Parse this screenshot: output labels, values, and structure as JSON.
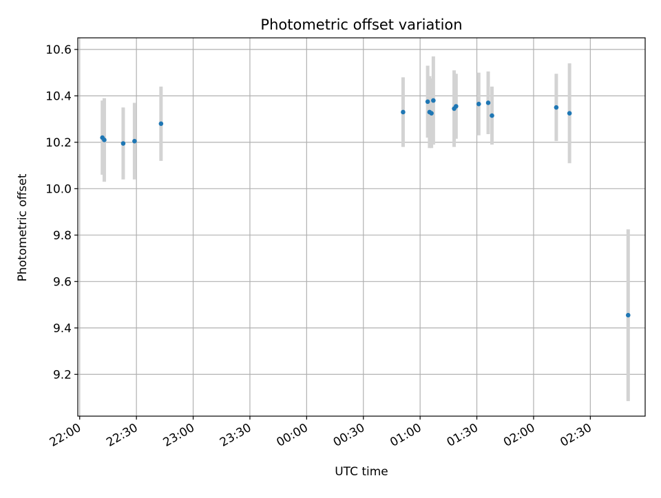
{
  "colors": {
    "point": "#1f77b4",
    "errorbar": "#d3d3d3",
    "grid": "#b0b0b0",
    "axis": "#000000"
  },
  "chart_data": {
    "type": "scatter",
    "title": "Photometric offset variation",
    "xlabel": "UTC time",
    "ylabel": "Photometric offset",
    "grid": true,
    "x_axis_type": "time",
    "xlim": [
      "21:59",
      "02:59"
    ],
    "ylim": [
      9.02,
      10.65
    ],
    "x_ticks": [
      "22:00",
      "22:30",
      "23:00",
      "23:30",
      "00:00",
      "00:30",
      "01:00",
      "01:30",
      "02:00",
      "02:30"
    ],
    "y_ticks": [
      9.2,
      9.4,
      9.6,
      9.8,
      10.0,
      10.2,
      10.4,
      10.6
    ],
    "y_tick_labels": [
      "9.2",
      "9.4",
      "9.6",
      "9.8",
      "10.0",
      "10.2",
      "10.4",
      "10.6"
    ],
    "points": [
      {
        "x": "22:12",
        "y": 10.22,
        "err": 0.16
      },
      {
        "x": "22:13",
        "y": 10.21,
        "err": 0.18
      },
      {
        "x": "22:23",
        "y": 10.195,
        "err": 0.155
      },
      {
        "x": "22:29",
        "y": 10.205,
        "err": 0.165
      },
      {
        "x": "22:43",
        "y": 10.28,
        "err": 0.16
      },
      {
        "x": "00:51",
        "y": 10.33,
        "err": 0.15
      },
      {
        "x": "01:04",
        "y": 10.375,
        "err": 0.155
      },
      {
        "x": "01:05",
        "y": 10.33,
        "err": 0.155
      },
      {
        "x": "01:06",
        "y": 10.325,
        "err": 0.15
      },
      {
        "x": "01:07",
        "y": 10.38,
        "err": 0.19
      },
      {
        "x": "01:18",
        "y": 10.345,
        "err": 0.165
      },
      {
        "x": "01:19",
        "y": 10.355,
        "err": 0.14
      },
      {
        "x": "01:31",
        "y": 10.365,
        "err": 0.135
      },
      {
        "x": "01:36",
        "y": 10.37,
        "err": 0.135
      },
      {
        "x": "01:38",
        "y": 10.315,
        "err": 0.125
      },
      {
        "x": "02:12",
        "y": 10.35,
        "err": 0.145
      },
      {
        "x": "02:19",
        "y": 10.325,
        "err": 0.215
      },
      {
        "x": "02:50",
        "y": 9.455,
        "err": 0.37
      }
    ]
  }
}
